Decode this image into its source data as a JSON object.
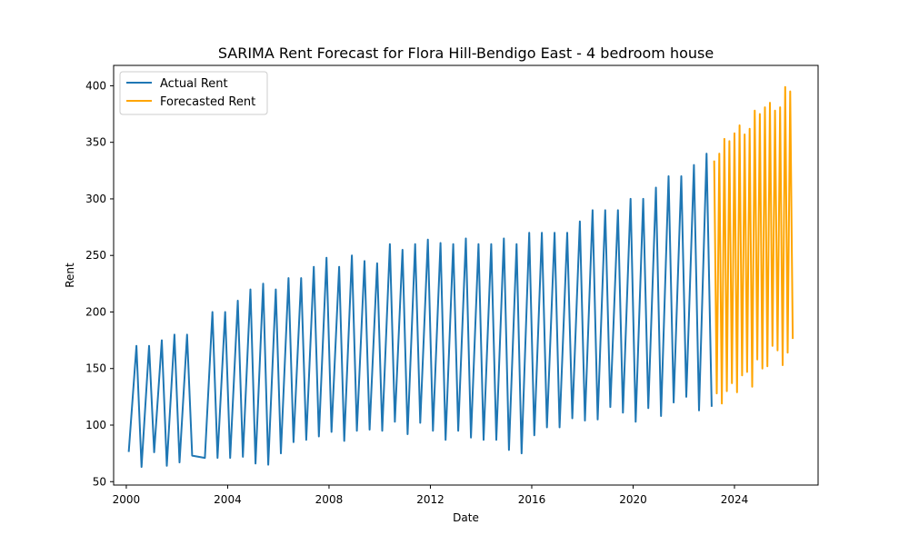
{
  "chart_data": {
    "type": "line",
    "title": "SARIMA Rent Forecast for Flora Hill-Bendigo East - 4 bedroom house",
    "xlabel": "Date",
    "ylabel": "Rent",
    "xlim": [
      1999.5,
      2027.3
    ],
    "ylim": [
      47,
      418
    ],
    "x_ticks": [
      2000,
      2004,
      2008,
      2012,
      2016,
      2020,
      2024
    ],
    "x_tick_labels": [
      "2000",
      "2004",
      "2008",
      "2012",
      "2016",
      "2020",
      "2024"
    ],
    "y_ticks": [
      50,
      100,
      150,
      200,
      250,
      300,
      350,
      400
    ],
    "y_tick_labels": [
      "50",
      "100",
      "150",
      "200",
      "250",
      "300",
      "350",
      "400"
    ],
    "grid": false,
    "legend_position": "upper-left",
    "series": [
      {
        "name": "Actual Rent",
        "color": "#1f77b4",
        "x": [
          2000.1,
          2000.4,
          2000.6,
          2000.9,
          2001.1,
          2001.4,
          2001.6,
          2001.9,
          2002.1,
          2002.4,
          2002.6,
          2003.1,
          2003.4,
          2003.6,
          2003.9,
          2004.1,
          2004.4,
          2004.6,
          2004.9,
          2005.1,
          2005.4,
          2005.6,
          2005.9,
          2006.1,
          2006.4,
          2006.6,
          2006.9,
          2007.1,
          2007.4,
          2007.6,
          2007.9,
          2008.1,
          2008.4,
          2008.6,
          2008.9,
          2009.1,
          2009.4,
          2009.6,
          2009.9,
          2010.1,
          2010.4,
          2010.6,
          2010.9,
          2011.1,
          2011.4,
          2011.6,
          2011.9,
          2012.1,
          2012.4,
          2012.6,
          2012.9,
          2013.1,
          2013.4,
          2013.6,
          2013.9,
          2014.1,
          2014.4,
          2014.6,
          2014.9,
          2015.1,
          2015.4,
          2015.6,
          2015.9,
          2016.1,
          2016.4,
          2016.6,
          2016.9,
          2017.1,
          2017.4,
          2017.6,
          2017.9,
          2018.1,
          2018.4,
          2018.6,
          2018.9,
          2019.1,
          2019.4,
          2019.6,
          2019.9,
          2020.1,
          2020.4,
          2020.6,
          2020.9,
          2021.1,
          2021.4,
          2021.6,
          2021.9,
          2022.1,
          2022.4,
          2022.6,
          2022.9,
          2023.1
        ],
        "values": [
          77,
          170,
          63,
          170,
          76,
          175,
          64,
          180,
          67,
          180,
          73,
          71,
          200,
          71,
          200,
          71,
          210,
          72,
          220,
          66,
          225,
          65,
          220,
          75,
          230,
          85,
          230,
          87,
          240,
          90,
          248,
          94,
          240,
          86,
          250,
          95,
          245,
          96,
          243,
          95,
          260,
          103,
          255,
          92,
          260,
          102,
          264,
          95,
          261,
          87,
          260,
          95,
          265,
          89,
          260,
          87,
          260,
          87,
          265,
          78,
          260,
          75,
          270,
          91,
          270,
          98,
          270,
          98,
          270,
          106,
          280,
          104,
          290,
          105,
          290,
          116,
          290,
          111,
          300,
          103,
          300,
          115,
          310,
          108,
          320,
          120,
          320,
          125,
          330,
          113,
          340,
          117
        ]
      },
      {
        "name": "Forecasted Rent",
        "color": "#ffa500",
        "x": [
          2023.2,
          2023.3,
          2023.4,
          2023.5,
          2023.6,
          2023.7,
          2023.8,
          2023.9,
          2024.0,
          2024.1,
          2024.2,
          2024.3,
          2024.4,
          2024.5,
          2024.6,
          2024.7,
          2024.8,
          2024.9,
          2025.0,
          2025.1,
          2025.2,
          2025.3,
          2025.4,
          2025.5,
          2025.6,
          2025.7,
          2025.8,
          2025.9,
          2026.0,
          2026.1,
          2026.2,
          2026.3
        ],
        "values": [
          333,
          128,
          340,
          119,
          353,
          130,
          351,
          137,
          358,
          129,
          365,
          144,
          357,
          147,
          362,
          134,
          378,
          158,
          375,
          150,
          381,
          152,
          385,
          170,
          378,
          166,
          381,
          153,
          399,
          164,
          395,
          177
        ]
      }
    ]
  }
}
